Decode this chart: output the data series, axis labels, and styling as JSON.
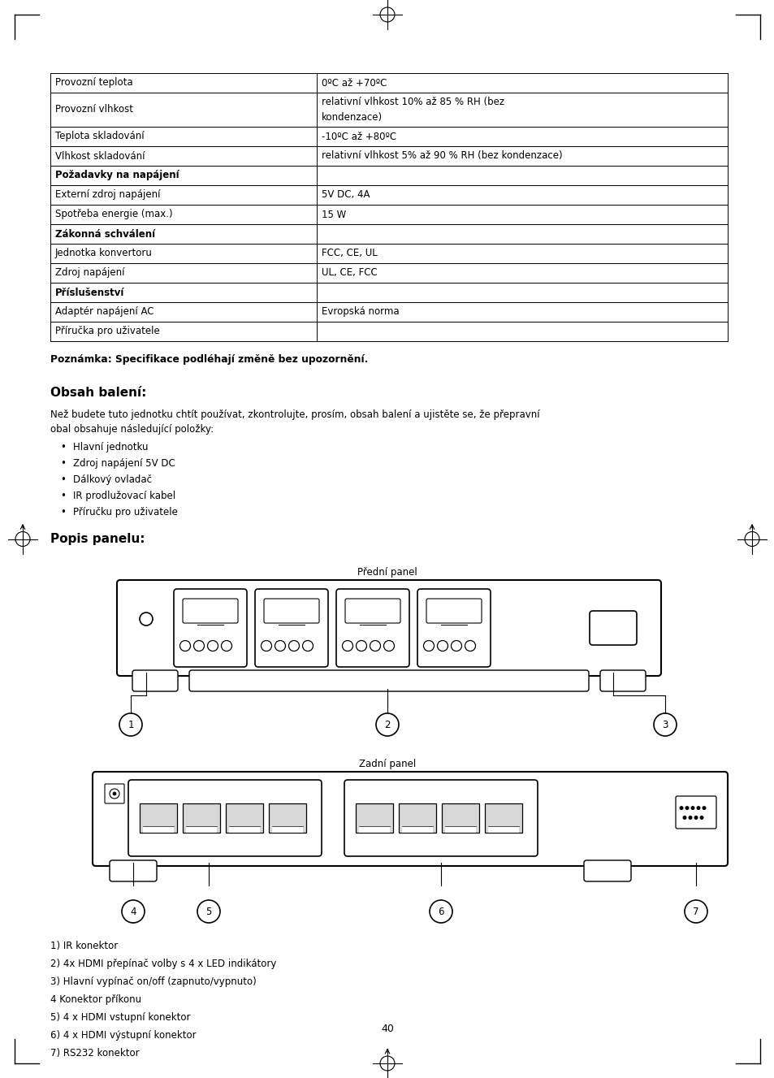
{
  "page_bg": "#ffffff",
  "table_data": [
    [
      "Provozní teplota",
      "0ºC až +70ºC",
      false
    ],
    [
      "Provozní vlhkost",
      "relativní vlhkost 10% až 85 % RH (bez\nkondenzace)",
      false
    ],
    [
      "Teplota skladování",
      "-10ºC až +80ºC",
      false
    ],
    [
      "Vlhkost skladování",
      "relativní vlhkost 5% až 90 % RH (bez kondenzace)",
      false
    ],
    [
      "Požadavky na napájení",
      "",
      true
    ],
    [
      "Externí zdroj napájení",
      "5V DC, 4A",
      false
    ],
    [
      "Spotřeba energie (max.)",
      "15 W",
      false
    ],
    [
      "Zákonná schválení",
      "",
      true
    ],
    [
      "Jednotka konvertoru",
      "FCC, CE, UL",
      false
    ],
    [
      "Zdroj napájení",
      "UL, CE, FCC",
      false
    ],
    [
      "Příslušenství",
      "",
      true
    ],
    [
      "Adaptér napájení AC",
      "Evropská norma",
      false
    ],
    [
      "Příručka pro uživatele",
      "",
      false
    ]
  ],
  "note_bold": "Poznámka: Specifikace podléhají změně bez upozornění.",
  "section1_title": "Obsah balení:",
  "section1_body_line1": "Než budete tuto jednotku chtít používat, zkontrolujte, prosím, obsah balení a ujistěte se, že přepravní",
  "section1_body_line2": "obal obsahuje následující položky:",
  "bullet_items": [
    "Hlavní jednotku",
    "Zdroj napájení 5V DC",
    "Dálkový ovladač",
    "IR prodlužovací kabel",
    "Příručku pro uživatele"
  ],
  "section2_title": "Popis panelu:",
  "front_panel_label": "Přední panel",
  "back_panel_label": "Zadní panel",
  "descriptions": [
    "1) IR konektor",
    "2) 4x HDMI přepínač volby s 4 x LED indikátory",
    "3) Hlavní vypínač on/off (zapnuto/vypnuto)",
    "4 Konektor příkonu",
    "5) 4 x HDMI vstupní konektor",
    "6) 4 x HDMI výstupní konektor",
    "7) RS232 konektor"
  ],
  "page_number": "40",
  "font_size_body": 9.0,
  "font_size_table": 8.5,
  "font_size_title": 11.0
}
